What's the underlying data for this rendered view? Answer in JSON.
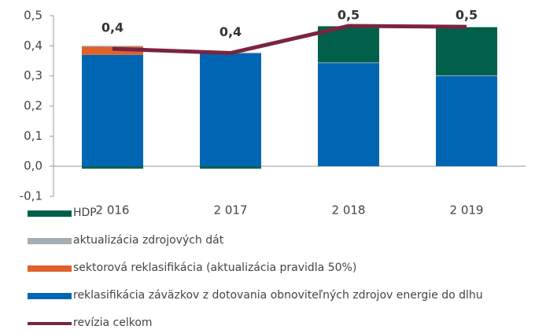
{
  "chart_data": {
    "type": "bar",
    "stacked": true,
    "categories": [
      "2 016",
      "2 017",
      "2 018",
      "2 019"
    ],
    "series": [
      {
        "name": "HDP",
        "color": "#00604a",
        "values": [
          -0.008,
          -0.008,
          0.12,
          0.16
        ]
      },
      {
        "name": "aktualizácia zdrojových dát",
        "color": "#a3adb3",
        "values": [
          0.003,
          0.003,
          0.002,
          0.002
        ]
      },
      {
        "name": "sektorová reklasifikácia (aktualizácia pravidla 50%)",
        "color": "#e0612a",
        "values": [
          0.027,
          0,
          0,
          0
        ]
      },
      {
        "name": "reklasifikácia záväzkov z dotovania obnoviteľných zdrojov energie do dlhu",
        "color": "#0066b3",
        "values": [
          0.37,
          0.375,
          0.343,
          0.3
        ]
      },
      {
        "name": "revízia celkom",
        "color": "#7a2440",
        "type": "line",
        "values": [
          0.39,
          0.376,
          0.466,
          0.463
        ],
        "value_labels": [
          "0,4",
          "0,4",
          "0,5",
          "0,5"
        ]
      }
    ],
    "ylim": [
      -0.1,
      0.5
    ],
    "yticks": [
      {
        "value": -0.1,
        "label": "-0,1"
      },
      {
        "value": 0,
        "label": "0,0"
      },
      {
        "value": 0.1,
        "label": "0,1"
      },
      {
        "value": 0.2,
        "label": "0,2"
      },
      {
        "value": 0.3,
        "label": "0,3"
      },
      {
        "value": 0.4,
        "label": "0,4"
      },
      {
        "value": 0.5,
        "label": "0,5"
      }
    ],
    "grid": false,
    "legend": "bottom"
  }
}
